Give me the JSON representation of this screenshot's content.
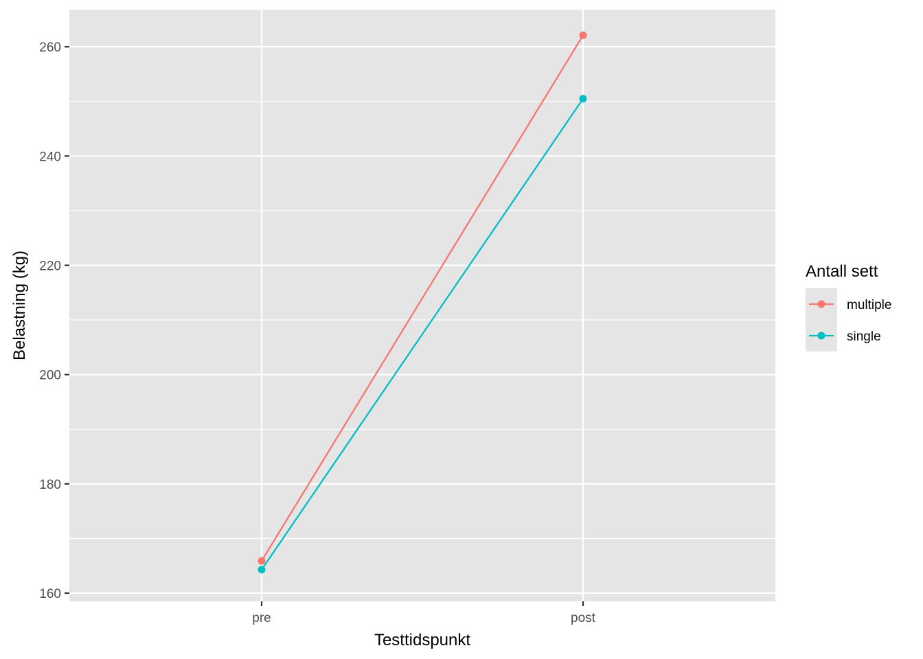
{
  "chart_data": {
    "type": "line",
    "xlabel": "Testtidspunkt",
    "ylabel": "Belastning (kg)",
    "categories": [
      "pre",
      "post"
    ],
    "ylim": [
      158.5,
      266.8
    ],
    "yticks": [
      160,
      180,
      200,
      220,
      240,
      260
    ],
    "grid": true,
    "legend": {
      "title": "Antall sett",
      "position": "right"
    },
    "series": [
      {
        "name": "multiple",
        "color": "#F8766D",
        "values": [
          165.9,
          262.1
        ]
      },
      {
        "name": "single",
        "color": "#00BFC4",
        "values": [
          164.3,
          250.5
        ]
      }
    ]
  }
}
